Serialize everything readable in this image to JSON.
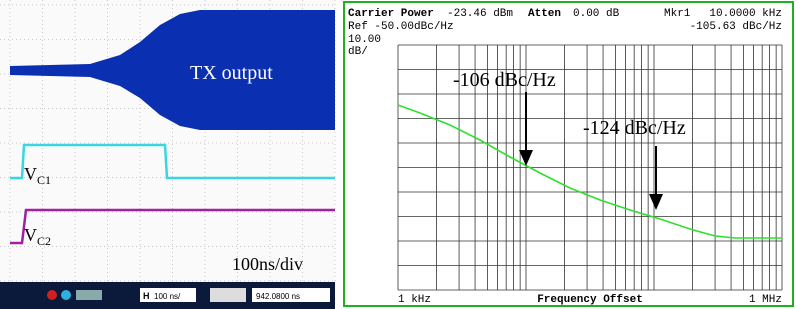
{
  "scope": {
    "trace_label": "TX output",
    "vc1": {
      "main": "V",
      "sub": "C1"
    },
    "vc2": {
      "main": "V",
      "sub": "C2"
    },
    "timebase": "100ns/div",
    "toolbar": {
      "h": "H",
      "scale": "100 ns/",
      "position": "942.0800 ns"
    }
  },
  "analyzer": {
    "carrier_label": "Carrier Power",
    "carrier_value": "-23.46 dBm",
    "atten_label": "Atten",
    "atten_value": "0.00 dB",
    "marker_label": "Mkr1",
    "marker_freq": "10.0000 kHz",
    "ref": "Ref -50.00dBc/Hz",
    "marker_value": "-105.63 dBc/Hz",
    "scale_value": "10.00",
    "scale_unit": "dB/",
    "annotation_1": "-106 dBc/Hz",
    "annotation_2": "-124 dBc/Hz",
    "x_start": "1 kHz",
    "x_label": "Frequency Offset",
    "x_end": "1 MHz"
  }
}
